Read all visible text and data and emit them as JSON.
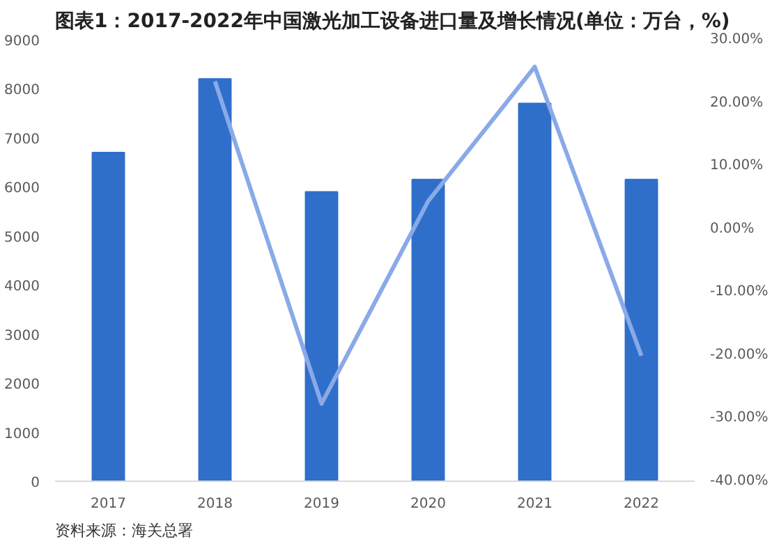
{
  "chart_data": {
    "type": "bar",
    "title": "图表1：2017-2022年中国激光加工设备进口量及增长情况(单位：万台，%)",
    "categories": [
      "2017",
      "2018",
      "2019",
      "2020",
      "2021",
      "2022"
    ],
    "series": [
      {
        "color": "#2f6fca",
        "values": [
          6700,
          8200,
          5900,
          6150,
          7700,
          6150
        ]
      },
      {
        "type": "line",
        "axis": "y2",
        "color": "#8aa9e8",
        "values": [
          null,
          23.4,
          -27.7,
          4.4,
          25.7,
          -20.1
        ]
      }
    ],
    "ylim": [
      0,
      9000
    ],
    "yticks": [
      0,
      1000,
      2000,
      3000,
      4000,
      5000,
      6000,
      7000,
      8000,
      9000
    ],
    "y2lim": [
      -40,
      30
    ],
    "y2ticks": [
      {
        "value": -40,
        "label": "-40.00%"
      },
      {
        "value": -30,
        "label": "-30.00%"
      },
      {
        "value": -20,
        "label": "-20.00%"
      },
      {
        "value": -10,
        "label": "-10.00%"
      },
      {
        "value": 0,
        "label": "0.00%"
      },
      {
        "value": 10,
        "label": "10.00%"
      },
      {
        "value": 20,
        "label": "20.00%"
      },
      {
        "value": 30,
        "label": "30.00%"
      }
    ],
    "grid": false,
    "annotations": [
      "资料来源：海关总署"
    ]
  }
}
